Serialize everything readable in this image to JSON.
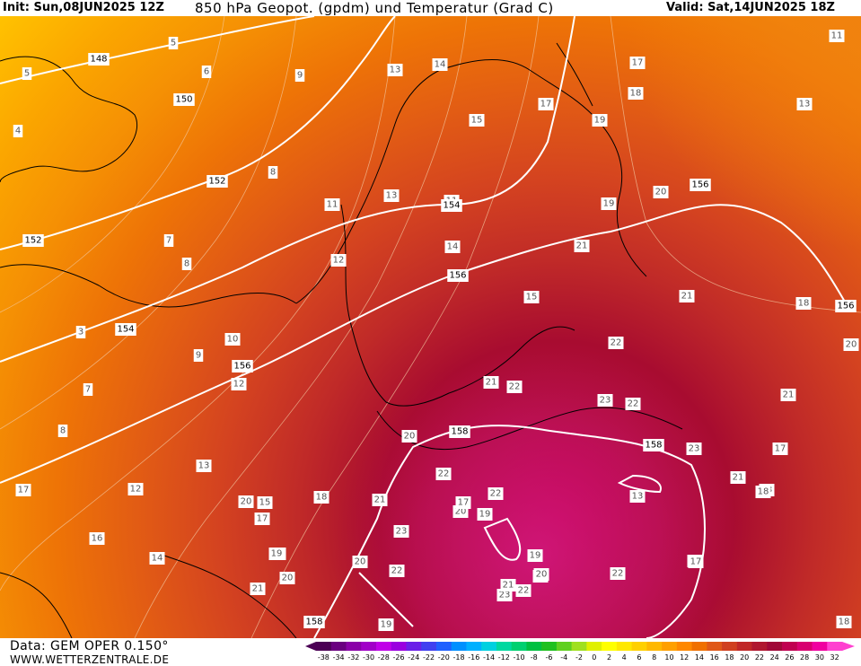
{
  "header": {
    "init": "Init: Sun,08JUN2025 12Z",
    "title": "850 hPa Geopot. (gpdm) und Temperatur (Grad C)",
    "valid": "Valid: Sat,14JUN2025 18Z"
  },
  "footer": {
    "model": "Data: GEM OPER 0.150°",
    "site": "WWW.WETTERZENTRALE.DE"
  },
  "legend": {
    "ticks": [
      "-38",
      "-34",
      "-32",
      "-30",
      "-28",
      "-26",
      "-24",
      "-22",
      "-20",
      "-18",
      "-16",
      "-14",
      "-12",
      "-10",
      "-8",
      "-6",
      "-4",
      "-2",
      "0",
      "2",
      "4",
      "6",
      "8",
      "10",
      "12",
      "14",
      "16",
      "18",
      "20",
      "22",
      "24",
      "26",
      "28",
      "30",
      "32"
    ],
    "colors": [
      "#4b0055",
      "#6a0080",
      "#8a00a8",
      "#a100c8",
      "#c000e8",
      "#9a00e0",
      "#6a20e8",
      "#4040f0",
      "#2060ff",
      "#0090ff",
      "#00b0ff",
      "#00d0e0",
      "#00d8a0",
      "#00d070",
      "#00c040",
      "#20c020",
      "#60d020",
      "#a0e020",
      "#e0f000",
      "#ffff00",
      "#ffe800",
      "#ffd000",
      "#ffb800",
      "#ffa000",
      "#ff8800",
      "#f07000",
      "#e05818",
      "#d04020",
      "#c02828",
      "#b01830",
      "#a00838",
      "#c00050",
      "#d80070",
      "#f000a0",
      "#ff40d0"
    ]
  },
  "map": {
    "temperature_labels": [
      "11",
      "13",
      "14",
      "17",
      "18",
      "15",
      "17",
      "19",
      "13",
      "9",
      "6",
      "5",
      "5",
      "4",
      "8",
      "7",
      "8",
      "3",
      "10",
      "9",
      "7",
      "8",
      "12",
      "11",
      "13",
      "12",
      "14",
      "19",
      "17",
      "15",
      "20",
      "12",
      "16",
      "17",
      "13",
      "11",
      "14",
      "15",
      "21",
      "19",
      "20",
      "21",
      "22",
      "23",
      "22",
      "22",
      "21",
      "20",
      "22",
      "18",
      "20",
      "19",
      "22",
      "23",
      "22",
      "21",
      "20",
      "19",
      "20",
      "21",
      "22",
      "19",
      "18",
      "23",
      "22",
      "23",
      "21",
      "23",
      "23",
      "17",
      "21",
      "18",
      "20",
      "18",
      "17",
      "13",
      "17",
      "21",
      "20",
      "19",
      "18"
    ],
    "geopotential_labels": [
      "148",
      "150",
      "152",
      "152",
      "154",
      "154",
      "156",
      "156",
      "156",
      "156",
      "158",
      "158",
      "158"
    ]
  }
}
